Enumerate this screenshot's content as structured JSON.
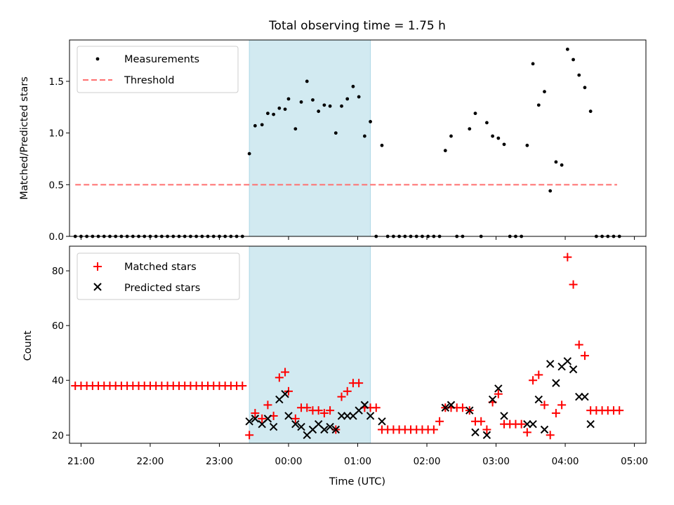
{
  "chart_data": [
    {
      "type": "scatter",
      "title": "Total observing time = 1.75 h",
      "ylabel": "Matched/Predicted stars",
      "xlabel": "",
      "xlim": [
        "20:50",
        "05:10"
      ],
      "ylim": [
        0,
        1.9
      ],
      "yticks": [
        "0.0",
        "0.5",
        "1.0",
        "1.5"
      ],
      "shaded_interval": [
        "23:26",
        "01:11"
      ],
      "shade_color": "#add8e6",
      "legend": {
        "placement": "top-left",
        "entries": [
          {
            "label": "Measurements",
            "marker": "dot",
            "color": "#000000"
          },
          {
            "label": "Threshold",
            "marker": "dashed-line",
            "color": "#ff7070"
          }
        ]
      },
      "threshold": {
        "name": "Threshold",
        "value": 0.5,
        "x_range": [
          "20:55",
          "04:45"
        ],
        "color": "#ff7070"
      },
      "series": [
        {
          "name": "Measurements",
          "color": "#000000",
          "points": [
            [
              "20:55",
              0
            ],
            [
              "21:00",
              0
            ],
            [
              "21:05",
              0
            ],
            [
              "21:10",
              0
            ],
            [
              "21:15",
              0
            ],
            [
              "21:20",
              0
            ],
            [
              "21:25",
              0
            ],
            [
              "21:30",
              0
            ],
            [
              "21:35",
              0
            ],
            [
              "21:40",
              0
            ],
            [
              "21:45",
              0
            ],
            [
              "21:50",
              0
            ],
            [
              "21:55",
              0
            ],
            [
              "22:00",
              0
            ],
            [
              "22:05",
              0
            ],
            [
              "22:10",
              0
            ],
            [
              "22:15",
              0
            ],
            [
              "22:20",
              0
            ],
            [
              "22:25",
              0
            ],
            [
              "22:30",
              0
            ],
            [
              "22:35",
              0
            ],
            [
              "22:40",
              0
            ],
            [
              "22:45",
              0
            ],
            [
              "22:50",
              0
            ],
            [
              "22:55",
              0
            ],
            [
              "23:00",
              0
            ],
            [
              "23:05",
              0
            ],
            [
              "23:10",
              0
            ],
            [
              "23:15",
              0
            ],
            [
              "23:20",
              0
            ],
            [
              "23:26",
              0.8
            ],
            [
              "23:31",
              1.07
            ],
            [
              "23:37",
              1.08
            ],
            [
              "23:42",
              1.19
            ],
            [
              "23:47",
              1.18
            ],
            [
              "23:52",
              1.24
            ],
            [
              "23:57",
              1.23
            ],
            [
              "00:00",
              1.33
            ],
            [
              "00:06",
              1.04
            ],
            [
              "00:11",
              1.3
            ],
            [
              "00:16",
              1.5
            ],
            [
              "00:21",
              1.32
            ],
            [
              "00:26",
              1.21
            ],
            [
              "00:31",
              1.27
            ],
            [
              "00:36",
              1.26
            ],
            [
              "00:41",
              1.0
            ],
            [
              "00:46",
              1.26
            ],
            [
              "00:51",
              1.33
            ],
            [
              "00:56",
              1.45
            ],
            [
              "01:01",
              1.35
            ],
            [
              "01:06",
              0.97
            ],
            [
              "01:11",
              1.11
            ],
            [
              "01:16",
              0
            ],
            [
              "01:21",
              0.88
            ],
            [
              "01:26",
              0
            ],
            [
              "01:31",
              0
            ],
            [
              "01:36",
              0
            ],
            [
              "01:41",
              0
            ],
            [
              "01:46",
              0
            ],
            [
              "01:51",
              0
            ],
            [
              "01:56",
              0
            ],
            [
              "02:01",
              0
            ],
            [
              "02:06",
              0
            ],
            [
              "02:11",
              0
            ],
            [
              "02:16",
              0.83
            ],
            [
              "02:21",
              0.97
            ],
            [
              "02:26",
              0
            ],
            [
              "02:31",
              0
            ],
            [
              "02:37",
              1.04
            ],
            [
              "02:42",
              1.19
            ],
            [
              "02:47",
              0
            ],
            [
              "02:52",
              1.1
            ],
            [
              "02:57",
              0.97
            ],
            [
              "03:02",
              0.95
            ],
            [
              "03:07",
              0.89
            ],
            [
              "03:12",
              0
            ],
            [
              "03:17",
              0
            ],
            [
              "03:22",
              0
            ],
            [
              "03:27",
              0.88
            ],
            [
              "03:32",
              1.67
            ],
            [
              "03:37",
              1.27
            ],
            [
              "03:42",
              1.4
            ],
            [
              "03:47",
              0.44
            ],
            [
              "03:52",
              0.72
            ],
            [
              "03:57",
              0.69
            ],
            [
              "04:02",
              1.81
            ],
            [
              "04:07",
              1.71
            ],
            [
              "04:12",
              1.56
            ],
            [
              "04:17",
              1.44
            ],
            [
              "04:22",
              1.21
            ],
            [
              "04:27",
              0
            ],
            [
              "04:32",
              0
            ],
            [
              "04:37",
              0
            ],
            [
              "04:42",
              0
            ],
            [
              "04:47",
              0
            ]
          ]
        }
      ]
    },
    {
      "type": "scatter",
      "title": "",
      "xlabel": "Time (UTC)",
      "ylabel": "Count",
      "xlim": [
        "20:50",
        "05:10"
      ],
      "ylim": [
        17,
        89
      ],
      "yticks": [
        "20",
        "40",
        "60",
        "80"
      ],
      "xticks": [
        "21:00",
        "22:00",
        "23:00",
        "00:00",
        "01:00",
        "02:00",
        "03:00",
        "04:00",
        "05:00"
      ],
      "shaded_interval": [
        "23:26",
        "01:11"
      ],
      "shade_color": "#add8e6",
      "legend": {
        "placement": "top-left",
        "entries": [
          {
            "label": "Matched stars",
            "marker": "plus",
            "color": "#ff0000"
          },
          {
            "label": "Predicted stars",
            "marker": "x",
            "color": "#000000"
          }
        ]
      },
      "series": [
        {
          "name": "Matched stars",
          "marker": "plus",
          "color": "#ff0000",
          "points": [
            [
              "20:55",
              38
            ],
            [
              "21:00",
              38
            ],
            [
              "21:05",
              38
            ],
            [
              "21:10",
              38
            ],
            [
              "21:15",
              38
            ],
            [
              "21:20",
              38
            ],
            [
              "21:25",
              38
            ],
            [
              "21:30",
              38
            ],
            [
              "21:35",
              38
            ],
            [
              "21:40",
              38
            ],
            [
              "21:45",
              38
            ],
            [
              "21:50",
              38
            ],
            [
              "21:55",
              38
            ],
            [
              "22:00",
              38
            ],
            [
              "22:05",
              38
            ],
            [
              "22:10",
              38
            ],
            [
              "22:15",
              38
            ],
            [
              "22:20",
              38
            ],
            [
              "22:25",
              38
            ],
            [
              "22:30",
              38
            ],
            [
              "22:35",
              38
            ],
            [
              "22:40",
              38
            ],
            [
              "22:45",
              38
            ],
            [
              "22:50",
              38
            ],
            [
              "22:55",
              38
            ],
            [
              "23:00",
              38
            ],
            [
              "23:05",
              38
            ],
            [
              "23:10",
              38
            ],
            [
              "23:15",
              38
            ],
            [
              "23:20",
              38
            ],
            [
              "23:26",
              20
            ],
            [
              "23:31",
              28
            ],
            [
              "23:37",
              26
            ],
            [
              "23:42",
              31
            ],
            [
              "23:47",
              27
            ],
            [
              "23:52",
              41
            ],
            [
              "23:57",
              43
            ],
            [
              "00:00",
              36
            ],
            [
              "00:06",
              26
            ],
            [
              "00:11",
              30
            ],
            [
              "00:16",
              30
            ],
            [
              "00:21",
              29
            ],
            [
              "00:26",
              29
            ],
            [
              "00:31",
              28
            ],
            [
              "00:36",
              29
            ],
            [
              "00:41",
              22
            ],
            [
              "00:46",
              34
            ],
            [
              "00:51",
              36
            ],
            [
              "00:56",
              39
            ],
            [
              "01:01",
              39
            ],
            [
              "01:06",
              30
            ],
            [
              "01:11",
              30
            ],
            [
              "01:16",
              30
            ],
            [
              "01:21",
              22
            ],
            [
              "01:26",
              22
            ],
            [
              "01:31",
              22
            ],
            [
              "01:36",
              22
            ],
            [
              "01:41",
              22
            ],
            [
              "01:46",
              22
            ],
            [
              "01:51",
              22
            ],
            [
              "01:56",
              22
            ],
            [
              "02:01",
              22
            ],
            [
              "02:06",
              22
            ],
            [
              "02:11",
              25
            ],
            [
              "02:16",
              30
            ],
            [
              "02:21",
              30
            ],
            [
              "02:26",
              30
            ],
            [
              "02:31",
              30
            ],
            [
              "02:37",
              29
            ],
            [
              "02:42",
              25
            ],
            [
              "02:47",
              25
            ],
            [
              "02:52",
              22
            ],
            [
              "02:57",
              32
            ],
            [
              "03:02",
              35
            ],
            [
              "03:07",
              24
            ],
            [
              "03:12",
              24
            ],
            [
              "03:17",
              24
            ],
            [
              "03:22",
              24
            ],
            [
              "03:27",
              21
            ],
            [
              "03:32",
              40
            ],
            [
              "03:37",
              42
            ],
            [
              "03:42",
              31
            ],
            [
              "03:47",
              20
            ],
            [
              "03:52",
              28
            ],
            [
              "03:57",
              31
            ],
            [
              "04:02",
              85
            ],
            [
              "04:07",
              75
            ],
            [
              "04:12",
              53
            ],
            [
              "04:17",
              49
            ],
            [
              "04:22",
              29
            ],
            [
              "04:27",
              29
            ],
            [
              "04:32",
              29
            ],
            [
              "04:37",
              29
            ],
            [
              "04:42",
              29
            ],
            [
              "04:47",
              29
            ]
          ]
        },
        {
          "name": "Predicted stars",
          "marker": "x",
          "color": "#000000",
          "points": [
            [
              "23:26",
              25
            ],
            [
              "23:31",
              26
            ],
            [
              "23:37",
              24
            ],
            [
              "23:42",
              26
            ],
            [
              "23:47",
              23
            ],
            [
              "23:52",
              33
            ],
            [
              "23:57",
              35
            ],
            [
              "00:00",
              27
            ],
            [
              "00:06",
              24
            ],
            [
              "00:11",
              23
            ],
            [
              "00:16",
              20
            ],
            [
              "00:21",
              22
            ],
            [
              "00:26",
              24
            ],
            [
              "00:31",
              22
            ],
            [
              "00:36",
              23
            ],
            [
              "00:41",
              22
            ],
            [
              "00:46",
              27
            ],
            [
              "00:51",
              27
            ],
            [
              "00:56",
              27
            ],
            [
              "01:01",
              29
            ],
            [
              "01:06",
              31
            ],
            [
              "01:11",
              27
            ],
            [
              "01:21",
              25
            ],
            [
              "02:16",
              30
            ],
            [
              "02:21",
              31
            ],
            [
              "02:37",
              29
            ],
            [
              "02:42",
              21
            ],
            [
              "02:52",
              20
            ],
            [
              "02:57",
              33
            ],
            [
              "03:02",
              37
            ],
            [
              "03:07",
              27
            ],
            [
              "03:27",
              24
            ],
            [
              "03:32",
              24
            ],
            [
              "03:37",
              33
            ],
            [
              "03:42",
              22
            ],
            [
              "03:47",
              46
            ],
            [
              "03:52",
              39
            ],
            [
              "03:57",
              45
            ],
            [
              "04:02",
              47
            ],
            [
              "04:07",
              44
            ],
            [
              "04:12",
              34
            ],
            [
              "04:17",
              34
            ],
            [
              "04:22",
              24
            ]
          ]
        }
      ]
    }
  ]
}
